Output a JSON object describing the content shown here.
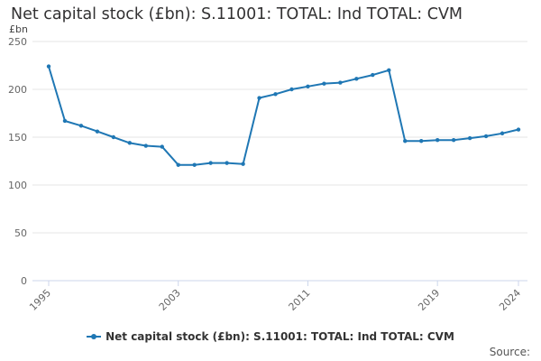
{
  "title": "Net capital stock (£bn): S.11001: TOTAL: Ind TOTAL: CVM",
  "y_unit": "£bn",
  "source_label": "Source:",
  "colors": {
    "series": "#1f77b4",
    "grid": "#e6e6e6",
    "axis": "#ccd6eb",
    "text": "#666666"
  },
  "chart_data": {
    "type": "line",
    "title": "Net capital stock (£bn): S.11001: TOTAL: Ind TOTAL: CVM",
    "xlabel": "",
    "ylabel": "£bn",
    "ylim": [
      0,
      250
    ],
    "yticks": [
      0,
      50,
      100,
      150,
      200,
      250
    ],
    "xlim": [
      1995,
      2024
    ],
    "xticks": [
      "1995",
      "2003",
      "2011",
      "2019",
      "2024"
    ],
    "grid": true,
    "legend_position": "bottom-center",
    "x": [
      1995,
      1996,
      1997,
      1998,
      1999,
      2000,
      2001,
      2002,
      2003,
      2004,
      2005,
      2006,
      2007,
      2008,
      2009,
      2010,
      2011,
      2012,
      2013,
      2014,
      2015,
      2016,
      2017,
      2018,
      2019,
      2020,
      2021,
      2022,
      2023,
      2024
    ],
    "series": [
      {
        "name": "Net capital stock (£bn): S.11001: TOTAL: Ind TOTAL: CVM",
        "values": [
          224,
          167,
          162,
          156,
          150,
          144,
          141,
          140,
          121,
          121,
          123,
          123,
          122,
          191,
          195,
          200,
          203,
          206,
          207,
          211,
          215,
          220,
          146,
          146,
          147,
          147,
          149,
          151,
          154,
          158
        ]
      }
    ]
  }
}
